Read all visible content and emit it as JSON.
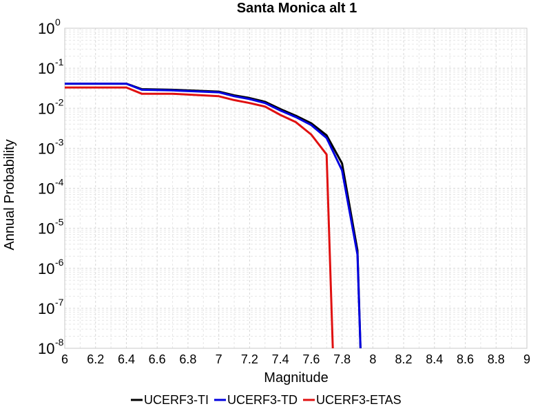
{
  "chart_data": {
    "type": "line",
    "title": "Santa Monica alt 1",
    "xlabel": "Magnitude",
    "ylabel": "Annual Probability",
    "xlim": [
      6,
      9
    ],
    "ylim": [
      1e-08,
      1
    ],
    "yscale": "log",
    "grid": true,
    "legend_position": "bottom",
    "xticks": [
      "6",
      "6.2",
      "6.4",
      "6.6",
      "6.8",
      "7",
      "7.2",
      "7.4",
      "7.6",
      "7.8",
      "8",
      "8.2",
      "8.4",
      "8.6",
      "8.8",
      "9"
    ],
    "yticks": [
      {
        "base": "10",
        "exp": "0"
      },
      {
        "base": "10",
        "exp": "-1"
      },
      {
        "base": "10",
        "exp": "-2"
      },
      {
        "base": "10",
        "exp": "-3"
      },
      {
        "base": "10",
        "exp": "-4"
      },
      {
        "base": "10",
        "exp": "-5"
      },
      {
        "base": "10",
        "exp": "-6"
      },
      {
        "base": "10",
        "exp": "-7"
      },
      {
        "base": "10",
        "exp": "-8"
      }
    ],
    "series": [
      {
        "name": "UCERF3-TI",
        "color": "#000000",
        "x": [
          6.0,
          6.4,
          6.5,
          6.7,
          7.0,
          7.1,
          7.2,
          7.3,
          7.4,
          7.5,
          7.6,
          7.7,
          7.8,
          7.9,
          7.92
        ],
        "y": [
          0.041,
          0.041,
          0.03,
          0.029,
          0.026,
          0.021,
          0.018,
          0.0145,
          0.0095,
          0.0065,
          0.0042,
          0.0021,
          0.00042,
          2.8e-06,
          1e-08
        ]
      },
      {
        "name": "UCERF3-TD",
        "color": "#0000e0",
        "x": [
          6.0,
          6.4,
          6.5,
          6.7,
          7.0,
          7.1,
          7.2,
          7.3,
          7.4,
          7.5,
          7.6,
          7.7,
          7.8,
          7.9,
          7.92
        ],
        "y": [
          0.041,
          0.041,
          0.029,
          0.028,
          0.025,
          0.02,
          0.017,
          0.0135,
          0.0088,
          0.006,
          0.0038,
          0.0018,
          0.00028,
          2.2e-06,
          1e-08
        ]
      },
      {
        "name": "UCERF3-ETAS",
        "color": "#e01010",
        "x": [
          6.0,
          6.4,
          6.5,
          6.7,
          7.0,
          7.1,
          7.2,
          7.3,
          7.4,
          7.5,
          7.6,
          7.7,
          7.74
        ],
        "y": [
          0.033,
          0.033,
          0.023,
          0.023,
          0.02,
          0.016,
          0.0135,
          0.011,
          0.0068,
          0.0045,
          0.0022,
          0.0007,
          1e-08
        ]
      }
    ]
  }
}
